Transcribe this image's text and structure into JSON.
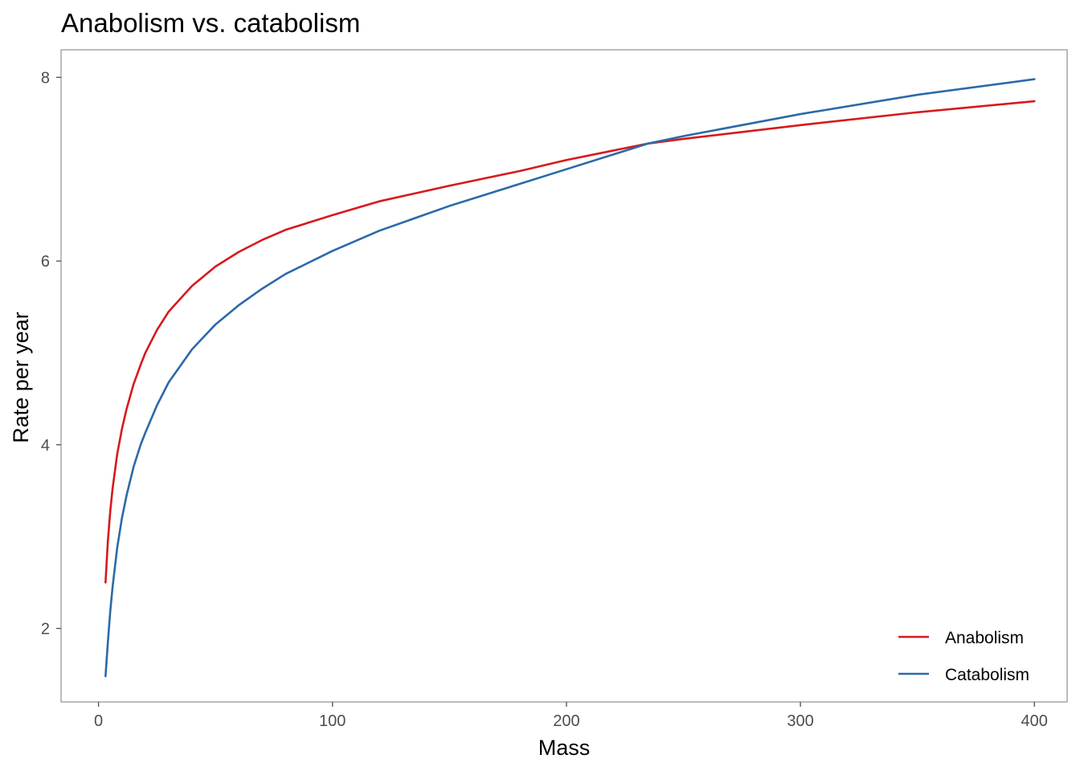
{
  "chart_data": {
    "type": "line",
    "title": "Anabolism vs. catabolism",
    "xlabel": "Mass",
    "ylabel": "Rate per year",
    "xlim": [
      -16,
      414
    ],
    "ylim": [
      1.2,
      8.3
    ],
    "x_ticks": [
      0,
      100,
      200,
      300,
      400
    ],
    "y_ticks": [
      2,
      4,
      6,
      8
    ],
    "grid": false,
    "legend_position": "bottom-right",
    "series": [
      {
        "name": "Anabolism",
        "color": "#d7191c",
        "points": [
          [
            3,
            2.5
          ],
          [
            4,
            2.95
          ],
          [
            5,
            3.27
          ],
          [
            6,
            3.52
          ],
          [
            8,
            3.9
          ],
          [
            10,
            4.17
          ],
          [
            12,
            4.39
          ],
          [
            15,
            4.66
          ],
          [
            18,
            4.87
          ],
          [
            20,
            5.0
          ],
          [
            25,
            5.25
          ],
          [
            30,
            5.45
          ],
          [
            40,
            5.73
          ],
          [
            50,
            5.94
          ],
          [
            60,
            6.1
          ],
          [
            70,
            6.23
          ],
          [
            80,
            6.34
          ],
          [
            100,
            6.5
          ],
          [
            120,
            6.65
          ],
          [
            150,
            6.82
          ],
          [
            180,
            6.98
          ],
          [
            200,
            7.1
          ],
          [
            235,
            7.28
          ],
          [
            250,
            7.33
          ],
          [
            300,
            7.48
          ],
          [
            350,
            7.62
          ],
          [
            400,
            7.74
          ]
        ]
      },
      {
        "name": "Catabolism",
        "color": "#2c69a9",
        "points": [
          [
            3,
            1.48
          ],
          [
            4,
            1.85
          ],
          [
            5,
            2.18
          ],
          [
            6,
            2.45
          ],
          [
            8,
            2.88
          ],
          [
            10,
            3.2
          ],
          [
            12,
            3.45
          ],
          [
            15,
            3.76
          ],
          [
            18,
            4.0
          ],
          [
            20,
            4.13
          ],
          [
            25,
            4.43
          ],
          [
            30,
            4.68
          ],
          [
            40,
            5.04
          ],
          [
            50,
            5.31
          ],
          [
            60,
            5.52
          ],
          [
            70,
            5.7
          ],
          [
            80,
            5.86
          ],
          [
            100,
            6.11
          ],
          [
            120,
            6.33
          ],
          [
            150,
            6.6
          ],
          [
            180,
            6.84
          ],
          [
            200,
            7.0
          ],
          [
            235,
            7.28
          ],
          [
            250,
            7.36
          ],
          [
            300,
            7.6
          ],
          [
            350,
            7.81
          ],
          [
            400,
            7.98
          ]
        ]
      }
    ]
  }
}
